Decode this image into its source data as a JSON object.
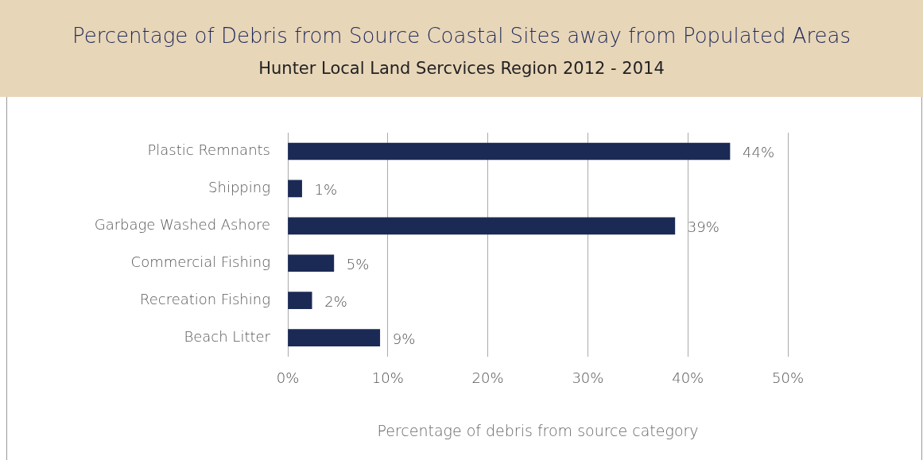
{
  "chart_data": {
    "type": "bar",
    "orientation": "horizontal",
    "title": "Percentage of Debris from Source Coastal Sites away from Populated Areas",
    "subtitle": "Hunter Local Land Sercvices Region 2012 - 2014",
    "xlabel": "Percentage of debris from source category",
    "categories": [
      "Plastic Remnants",
      "Shipping",
      "Garbage Washed Ashore",
      "Commercial Fishing",
      "Recreation Fishing",
      "Beach Litter"
    ],
    "values": [
      44.2,
      1.4,
      38.7,
      4.6,
      2.4,
      9.2
    ],
    "value_labels": [
      "44%",
      "1%",
      "39%",
      "5%",
      "2%",
      "9%"
    ],
    "color": "#1b2a55",
    "xlim": [
      0,
      50
    ],
    "xticks": [
      {
        "value": 0,
        "label": "0%"
      },
      {
        "value": 10,
        "label": "10%"
      },
      {
        "value": 20,
        "label": "20%"
      },
      {
        "value": 30,
        "label": "30%"
      },
      {
        "value": 40,
        "label": "40%"
      },
      {
        "value": 50,
        "label": "50%"
      }
    ],
    "grid": "x",
    "legend": false
  }
}
